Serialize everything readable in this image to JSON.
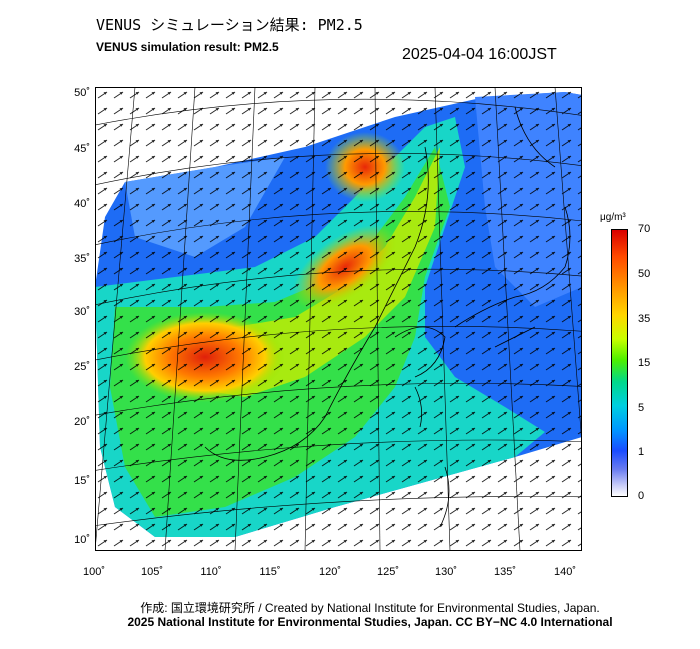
{
  "title_jp": "VENUS シミュレーション結果: PM2.5",
  "title_en": "VENUS simulation result: PM2.5",
  "timestamp": "2025-04-04 16:00JST",
  "lat_labels": [
    "50˚",
    "45˚",
    "40˚",
    "35˚",
    "30˚",
    "25˚",
    "20˚",
    "15˚",
    "10˚"
  ],
  "lon_labels": [
    "100˚",
    "105˚",
    "110˚",
    "115˚",
    "120˚",
    "125˚",
    "130˚",
    "135˚",
    "140˚"
  ],
  "colorbar": {
    "unit": "μg/m³",
    "ticks": [
      "70",
      "50",
      "35",
      "15",
      "5",
      "1",
      "0"
    ]
  },
  "footer_credit": "作成: 国立環境研究所 / Created by National Institute for Environmental Studies, Japan.",
  "footer_license": "2025 National Institute for Environmental Studies, Japan. CC BY−NC 4.0 International"
}
